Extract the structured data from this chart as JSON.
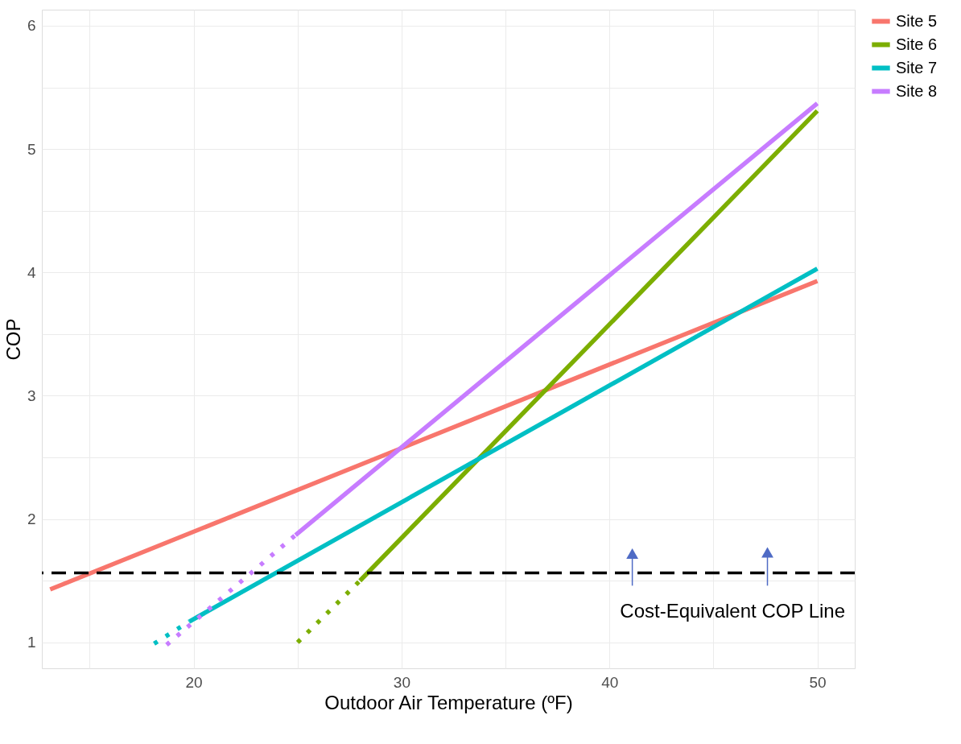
{
  "chart_data": {
    "type": "line",
    "xlabel": "Outdoor Air Temperature (ºF)",
    "ylabel": "COP",
    "xlim": [
      12.7,
      51.8
    ],
    "ylim": [
      0.79,
      6.13
    ],
    "xticks": [
      {
        "value": 15,
        "label": null
      },
      20,
      {
        "value": 25,
        "label": null
      },
      30,
      {
        "value": 35,
        "label": null
      },
      40,
      {
        "value": 45,
        "label": null
      },
      50
    ],
    "yticks": [
      1,
      {
        "value": 1.5,
        "label": null
      },
      2,
      {
        "value": 2.5,
        "label": null
      },
      3,
      {
        "value": 3.5,
        "label": null
      },
      4,
      {
        "value": 4.5,
        "label": null
      },
      5,
      {
        "value": 5.5,
        "label": null
      },
      6
    ],
    "grid": true,
    "legend": "right",
    "series": [
      {
        "name": "Site 5",
        "color": "#f8766d",
        "line_style": "solid",
        "x": [
          13.1,
          50
        ],
        "values": [
          1.43,
          3.93
        ]
      },
      {
        "name": "Site 6",
        "color": "#7cae00",
        "line_style": "solid",
        "x": [
          28,
          50
        ],
        "values": [
          1.5,
          5.31
        ]
      },
      {
        "name": "Site 7",
        "color": "#00bfc4",
        "line_style": "solid",
        "x": [
          19.8,
          50
        ],
        "values": [
          1.17,
          4.03
        ]
      },
      {
        "name": "Site 8",
        "color": "#c77cff",
        "line_style": "solid",
        "x": [
          24.9,
          50
        ],
        "values": [
          1.87,
          5.37
        ]
      },
      {
        "color": "#7cae00",
        "line_style": "dotted",
        "x": [
          25,
          28
        ],
        "values": [
          1.0,
          1.5
        ]
      },
      {
        "color": "#00bfc4",
        "line_style": "dotted",
        "x": [
          18.1,
          19.8
        ],
        "values": [
          0.99,
          1.17
        ]
      },
      {
        "color": "#c77cff",
        "line_style": "dotted",
        "x": [
          18.7,
          24.9
        ],
        "values": [
          0.98,
          1.87
        ]
      },
      {
        "color": "#4f6bc5",
        "type": "scatter",
        "marker": "triangle",
        "x": [
          41.1,
          47.6
        ],
        "values": [
          1.72,
          1.73
        ],
        "errors": [
          [
            1.46,
            1.72
          ],
          [
            1.46,
            1.73
          ]
        ]
      }
    ],
    "ref_lines": [
      {
        "axis": "y",
        "value": 1.563,
        "label": "Cost-Equivalent COP Line",
        "color": "#000000",
        "line_style": "dashed"
      }
    ]
  }
}
